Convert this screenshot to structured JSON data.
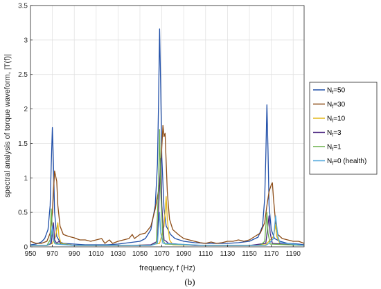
{
  "chart_data": {
    "type": "line",
    "xlabel": "frequency, f (Hz)",
    "ylabel": "spectral analysis of torque waveform, |T(f)|",
    "xlim": [
      950,
      1200
    ],
    "ylim": [
      0,
      3.5
    ],
    "xticks": [
      950,
      970,
      990,
      1010,
      1030,
      1050,
      1070,
      1090,
      1110,
      1130,
      1150,
      1170,
      1190
    ],
    "yticks": [
      0,
      0.5,
      1,
      1.5,
      2,
      2.5,
      3,
      3.5
    ],
    "grid": true,
    "legend_position": "right",
    "caption": "(b)",
    "series": [
      {
        "name": "N_f=50",
        "legend_base": "N",
        "legend_sub": "f",
        "legend_rest": "=50",
        "color": "#1f4ea8",
        "points": [
          [
            950,
            0.03
          ],
          [
            955,
            0.04
          ],
          [
            960,
            0.07
          ],
          [
            963,
            0.12
          ],
          [
            966,
            0.25
          ],
          [
            968,
            0.6
          ],
          [
            969,
            1.2
          ],
          [
            970,
            1.73
          ],
          [
            971,
            1.2
          ],
          [
            972,
            0.5
          ],
          [
            974,
            0.15
          ],
          [
            977,
            0.07
          ],
          [
            980,
            0.05
          ],
          [
            990,
            0.04
          ],
          [
            1000,
            0.03
          ],
          [
            1010,
            0.03
          ],
          [
            1020,
            0.03
          ],
          [
            1030,
            0.04
          ],
          [
            1040,
            0.06
          ],
          [
            1050,
            0.08
          ],
          [
            1055,
            0.12
          ],
          [
            1060,
            0.25
          ],
          [
            1064,
            0.6
          ],
          [
            1066,
            1.2
          ],
          [
            1067,
            2.1
          ],
          [
            1068,
            3.16
          ],
          [
            1069,
            2.3
          ],
          [
            1070,
            1.3
          ],
          [
            1072,
            0.55
          ],
          [
            1074,
            0.3
          ],
          [
            1078,
            0.18
          ],
          [
            1082,
            0.12
          ],
          [
            1090,
            0.08
          ],
          [
            1100,
            0.06
          ],
          [
            1110,
            0.05
          ],
          [
            1120,
            0.05
          ],
          [
            1130,
            0.05
          ],
          [
            1140,
            0.06
          ],
          [
            1150,
            0.08
          ],
          [
            1158,
            0.14
          ],
          [
            1162,
            0.3
          ],
          [
            1164,
            0.7
          ],
          [
            1165,
            1.3
          ],
          [
            1166,
            2.06
          ],
          [
            1167,
            1.4
          ],
          [
            1168,
            0.6
          ],
          [
            1170,
            0.25
          ],
          [
            1173,
            0.12
          ],
          [
            1178,
            0.08
          ],
          [
            1185,
            0.05
          ],
          [
            1195,
            0.04
          ],
          [
            1200,
            0.03
          ]
        ]
      },
      {
        "name": "N_f=30",
        "legend_base": "N",
        "legend_sub": "f",
        "legend_rest": "=30",
        "color": "#8b4a14",
        "points": [
          [
            950,
            0.08
          ],
          [
            955,
            0.05
          ],
          [
            960,
            0.05
          ],
          [
            965,
            0.08
          ],
          [
            968,
            0.2
          ],
          [
            970,
            0.5
          ],
          [
            971,
            0.8
          ],
          [
            972,
            1.1
          ],
          [
            974,
            0.95
          ],
          [
            975,
            0.6
          ],
          [
            977,
            0.3
          ],
          [
            980,
            0.18
          ],
          [
            985,
            0.15
          ],
          [
            990,
            0.13
          ],
          [
            995,
            0.1
          ],
          [
            1000,
            0.1
          ],
          [
            1005,
            0.08
          ],
          [
            1010,
            0.1
          ],
          [
            1015,
            0.12
          ],
          [
            1018,
            0.05
          ],
          [
            1022,
            0.1
          ],
          [
            1025,
            0.05
          ],
          [
            1030,
            0.08
          ],
          [
            1035,
            0.1
          ],
          [
            1040,
            0.12
          ],
          [
            1043,
            0.18
          ],
          [
            1045,
            0.12
          ],
          [
            1050,
            0.18
          ],
          [
            1055,
            0.2
          ],
          [
            1060,
            0.3
          ],
          [
            1064,
            0.55
          ],
          [
            1068,
            0.9
          ],
          [
            1070,
            1.45
          ],
          [
            1071,
            1.76
          ],
          [
            1072,
            1.6
          ],
          [
            1073,
            1.65
          ],
          [
            1075,
            0.8
          ],
          [
            1077,
            0.4
          ],
          [
            1080,
            0.25
          ],
          [
            1085,
            0.18
          ],
          [
            1090,
            0.12
          ],
          [
            1095,
            0.1
          ],
          [
            1100,
            0.08
          ],
          [
            1105,
            0.06
          ],
          [
            1110,
            0.05
          ],
          [
            1115,
            0.07
          ],
          [
            1120,
            0.05
          ],
          [
            1125,
            0.06
          ],
          [
            1130,
            0.08
          ],
          [
            1135,
            0.08
          ],
          [
            1140,
            0.1
          ],
          [
            1145,
            0.08
          ],
          [
            1150,
            0.1
          ],
          [
            1155,
            0.15
          ],
          [
            1160,
            0.2
          ],
          [
            1164,
            0.35
          ],
          [
            1166,
            0.6
          ],
          [
            1168,
            0.8
          ],
          [
            1170,
            0.9
          ],
          [
            1171,
            0.93
          ],
          [
            1172,
            0.7
          ],
          [
            1174,
            0.35
          ],
          [
            1176,
            0.18
          ],
          [
            1180,
            0.12
          ],
          [
            1185,
            0.1
          ],
          [
            1190,
            0.08
          ],
          [
            1195,
            0.08
          ],
          [
            1200,
            0.05
          ]
        ]
      },
      {
        "name": "N_f=10",
        "legend_base": "N",
        "legend_sub": "f",
        "legend_rest": "=10",
        "color": "#e3b91a",
        "points": [
          [
            950,
            0.02
          ],
          [
            965,
            0.02
          ],
          [
            970,
            0.05
          ],
          [
            973,
            0.15
          ],
          [
            975,
            0.35
          ],
          [
            976,
            0.15
          ],
          [
            978,
            0.05
          ],
          [
            990,
            0.02
          ],
          [
            1010,
            0.02
          ],
          [
            1040,
            0.02
          ],
          [
            1060,
            0.03
          ],
          [
            1068,
            0.05
          ],
          [
            1072,
            0.3
          ],
          [
            1074,
            0.73
          ],
          [
            1075,
            0.4
          ],
          [
            1077,
            0.1
          ],
          [
            1080,
            0.03
          ],
          [
            1110,
            0.02
          ],
          [
            1150,
            0.02
          ],
          [
            1165,
            0.03
          ],
          [
            1172,
            0.15
          ],
          [
            1174,
            0.32
          ],
          [
            1175,
            0.15
          ],
          [
            1178,
            0.04
          ],
          [
            1200,
            0.02
          ]
        ]
      },
      {
        "name": "N_f=3",
        "legend_base": "N",
        "legend_sub": "f",
        "legend_rest": "=3",
        "color": "#4a2680",
        "points": [
          [
            950,
            0.02
          ],
          [
            965,
            0.02
          ],
          [
            969,
            0.05
          ],
          [
            971,
            0.35
          ],
          [
            972,
            0.1
          ],
          [
            974,
            0.05
          ],
          [
            976,
            0.08
          ],
          [
            978,
            0.04
          ],
          [
            990,
            0.02
          ],
          [
            1010,
            0.02
          ],
          [
            1040,
            0.02
          ],
          [
            1060,
            0.03
          ],
          [
            1066,
            0.08
          ],
          [
            1068,
            0.9
          ],
          [
            1069,
            1.28
          ],
          [
            1070,
            0.6
          ],
          [
            1072,
            0.1
          ],
          [
            1074,
            0.08
          ],
          [
            1076,
            0.05
          ],
          [
            1100,
            0.02
          ],
          [
            1150,
            0.02
          ],
          [
            1165,
            0.05
          ],
          [
            1168,
            0.45
          ],
          [
            1169,
            0.2
          ],
          [
            1171,
            0.05
          ],
          [
            1200,
            0.02
          ]
        ]
      },
      {
        "name": "N_f=1",
        "legend_base": "N",
        "legend_sub": "f",
        "legend_rest": "=1",
        "color": "#6ab04c",
        "points": [
          [
            950,
            0.02
          ],
          [
            965,
            0.02
          ],
          [
            968,
            0.1
          ],
          [
            969,
            0.55
          ],
          [
            970,
            0.2
          ],
          [
            972,
            0.05
          ],
          [
            990,
            0.02
          ],
          [
            1040,
            0.02
          ],
          [
            1060,
            0.02
          ],
          [
            1065,
            0.05
          ],
          [
            1067,
            0.9
          ],
          [
            1068,
            1.7
          ],
          [
            1069,
            0.8
          ],
          [
            1071,
            0.1
          ],
          [
            1073,
            0.04
          ],
          [
            1110,
            0.02
          ],
          [
            1160,
            0.02
          ],
          [
            1164,
            0.08
          ],
          [
            1166,
            0.5
          ],
          [
            1167,
            0.2
          ],
          [
            1169,
            0.04
          ],
          [
            1200,
            0.02
          ]
        ]
      },
      {
        "name": "N_f=0 (health)",
        "legend_base": "N",
        "legend_sub": "f",
        "legend_rest": "=0 (health)",
        "color": "#4ea6dc",
        "points": [
          [
            950,
            0.02
          ],
          [
            965,
            0.02
          ],
          [
            968,
            0.05
          ],
          [
            970,
            0.3
          ],
          [
            971,
            0.1
          ],
          [
            973,
            0.04
          ],
          [
            990,
            0.02
          ],
          [
            1060,
            0.02
          ],
          [
            1066,
            0.05
          ],
          [
            1068,
            0.5
          ],
          [
            1069,
            0.2
          ],
          [
            1071,
            0.05
          ],
          [
            1110,
            0.02
          ],
          [
            1165,
            0.02
          ],
          [
            1168,
            0.05
          ],
          [
            1172,
            0.12
          ],
          [
            1174,
            0.45
          ],
          [
            1175,
            0.3
          ],
          [
            1176,
            0.15
          ],
          [
            1178,
            0.06
          ],
          [
            1200,
            0.02
          ]
        ]
      }
    ]
  }
}
